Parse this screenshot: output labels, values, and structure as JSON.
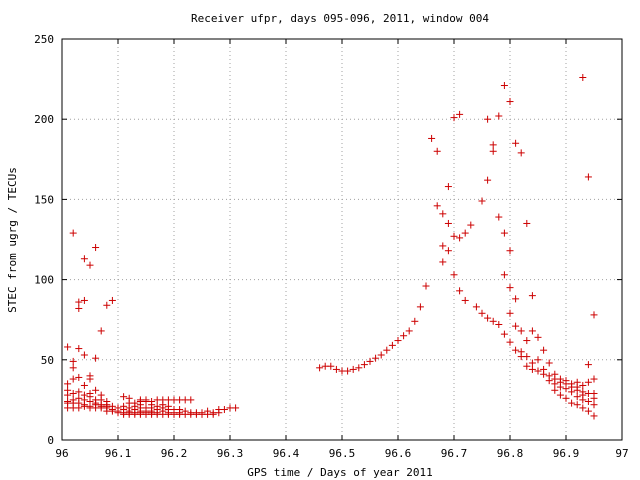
{
  "chart_data": {
    "type": "scatter",
    "title": "Receiver ufpr, days 095-096, 2011, window 004",
    "xlabel": "GPS time / Days of year 2011",
    "ylabel": "STEC from ugrg / TECUs",
    "xlim": [
      96,
      97
    ],
    "ylim": [
      0,
      250
    ],
    "x_ticks": [
      "96",
      "96.1",
      "96.2",
      "96.3",
      "96.4",
      "96.5",
      "96.6",
      "96.7",
      "96.8",
      "96.9",
      "97"
    ],
    "y_ticks": [
      "0",
      "50",
      "100",
      "150",
      "200",
      "250"
    ],
    "grid": true,
    "marker": "+",
    "color": "#cc0000",
    "series": [
      {
        "points": [
          [
            96.01,
            58
          ],
          [
            96.01,
            35
          ],
          [
            96.01,
            31
          ],
          [
            96.01,
            28
          ],
          [
            96.01,
            24
          ],
          [
            96.01,
            23
          ],
          [
            96.01,
            20
          ],
          [
            96.02,
            129
          ],
          [
            96.02,
            49
          ],
          [
            96.02,
            45
          ],
          [
            96.02,
            38
          ],
          [
            96.02,
            29
          ],
          [
            96.02,
            25
          ],
          [
            96.02,
            23
          ],
          [
            96.02,
            20
          ],
          [
            96.03,
            86
          ],
          [
            96.03,
            82
          ],
          [
            96.03,
            57
          ],
          [
            96.03,
            39
          ],
          [
            96.03,
            30
          ],
          [
            96.03,
            26
          ],
          [
            96.03,
            23
          ],
          [
            96.03,
            20
          ],
          [
            96.04,
            113
          ],
          [
            96.04,
            87
          ],
          [
            96.04,
            53
          ],
          [
            96.04,
            34
          ],
          [
            96.04,
            28
          ],
          [
            96.04,
            25
          ],
          [
            96.04,
            22
          ],
          [
            96.04,
            21
          ],
          [
            96.05,
            109
          ],
          [
            96.05,
            40
          ],
          [
            96.05,
            38
          ],
          [
            96.05,
            29
          ],
          [
            96.05,
            27
          ],
          [
            96.05,
            24
          ],
          [
            96.05,
            21
          ],
          [
            96.05,
            20
          ],
          [
            96.06,
            120
          ],
          [
            96.06,
            51
          ],
          [
            96.06,
            31
          ],
          [
            96.06,
            25
          ],
          [
            96.06,
            23
          ],
          [
            96.06,
            22
          ],
          [
            96.06,
            20
          ],
          [
            96.07,
            68
          ],
          [
            96.07,
            28
          ],
          [
            96.07,
            25
          ],
          [
            96.07,
            22
          ],
          [
            96.07,
            21
          ],
          [
            96.07,
            20
          ],
          [
            96.08,
            84
          ],
          [
            96.08,
            24
          ],
          [
            96.08,
            22
          ],
          [
            96.08,
            21
          ],
          [
            96.08,
            20
          ],
          [
            96.08,
            18
          ],
          [
            96.09,
            87
          ],
          [
            96.09,
            21
          ],
          [
            96.09,
            19
          ],
          [
            96.09,
            18
          ],
          [
            96.1,
            20
          ],
          [
            96.1,
            18
          ],
          [
            96.1,
            17
          ],
          [
            96.11,
            27
          ],
          [
            96.11,
            21
          ],
          [
            96.11,
            19
          ],
          [
            96.11,
            17
          ],
          [
            96.11,
            16
          ],
          [
            96.12,
            26
          ],
          [
            96.12,
            23
          ],
          [
            96.12,
            20
          ],
          [
            96.12,
            18
          ],
          [
            96.12,
            17
          ],
          [
            96.12,
            16
          ],
          [
            96.13,
            23
          ],
          [
            96.13,
            21
          ],
          [
            96.13,
            19
          ],
          [
            96.13,
            17
          ],
          [
            96.13,
            16
          ],
          [
            96.14,
            25
          ],
          [
            96.14,
            24
          ],
          [
            96.14,
            22
          ],
          [
            96.14,
            20
          ],
          [
            96.14,
            18
          ],
          [
            96.14,
            17
          ],
          [
            96.14,
            16
          ],
          [
            96.15,
            25
          ],
          [
            96.15,
            24
          ],
          [
            96.15,
            20
          ],
          [
            96.15,
            18
          ],
          [
            96.15,
            17
          ],
          [
            96.15,
            16
          ],
          [
            96.16,
            24
          ],
          [
            96.16,
            22
          ],
          [
            96.16,
            20
          ],
          [
            96.16,
            18
          ],
          [
            96.16,
            17
          ],
          [
            96.16,
            16
          ],
          [
            96.17,
            25
          ],
          [
            96.17,
            21
          ],
          [
            96.17,
            19
          ],
          [
            96.17,
            17
          ],
          [
            96.17,
            16
          ],
          [
            96.18,
            25
          ],
          [
            96.18,
            22
          ],
          [
            96.18,
            20
          ],
          [
            96.18,
            18
          ],
          [
            96.18,
            16
          ],
          [
            96.19,
            25
          ],
          [
            96.19,
            21
          ],
          [
            96.19,
            19
          ],
          [
            96.19,
            17
          ],
          [
            96.19,
            16
          ],
          [
            96.2,
            25
          ],
          [
            96.2,
            19
          ],
          [
            96.2,
            17
          ],
          [
            96.2,
            16
          ],
          [
            96.21,
            25
          ],
          [
            96.21,
            19
          ],
          [
            96.21,
            17
          ],
          [
            96.21,
            16
          ],
          [
            96.22,
            25
          ],
          [
            96.22,
            18
          ],
          [
            96.22,
            16
          ],
          [
            96.23,
            25
          ],
          [
            96.23,
            17
          ],
          [
            96.23,
            16
          ],
          [
            96.24,
            17
          ],
          [
            96.24,
            16
          ],
          [
            96.25,
            17
          ],
          [
            96.25,
            16
          ],
          [
            96.26,
            18
          ],
          [
            96.26,
            16
          ],
          [
            96.27,
            17
          ],
          [
            96.27,
            16
          ],
          [
            96.28,
            19
          ],
          [
            96.28,
            17
          ],
          [
            96.29,
            19
          ],
          [
            96.3,
            20
          ],
          [
            96.31,
            20
          ],
          [
            96.46,
            45
          ],
          [
            96.47,
            46
          ],
          [
            96.48,
            46
          ],
          [
            96.49,
            44
          ],
          [
            96.5,
            43
          ],
          [
            96.51,
            43
          ],
          [
            96.52,
            44
          ],
          [
            96.53,
            45
          ],
          [
            96.54,
            47
          ],
          [
            96.55,
            49
          ],
          [
            96.56,
            51
          ],
          [
            96.57,
            53
          ],
          [
            96.58,
            56
          ],
          [
            96.59,
            59
          ],
          [
            96.6,
            62
          ],
          [
            96.61,
            65
          ],
          [
            96.62,
            68
          ],
          [
            96.63,
            74
          ],
          [
            96.64,
            83
          ],
          [
            96.65,
            96
          ],
          [
            96.66,
            188
          ],
          [
            96.67,
            180
          ],
          [
            96.67,
            146
          ],
          [
            96.68,
            141
          ],
          [
            96.68,
            121
          ],
          [
            96.68,
            111
          ],
          [
            96.69,
            158
          ],
          [
            96.69,
            135
          ],
          [
            96.69,
            118
          ],
          [
            96.7,
            201
          ],
          [
            96.7,
            127
          ],
          [
            96.7,
            103
          ],
          [
            96.71,
            203
          ],
          [
            96.71,
            126
          ],
          [
            96.71,
            93
          ],
          [
            96.72,
            129
          ],
          [
            96.72,
            87
          ],
          [
            96.73,
            134
          ],
          [
            96.74,
            83
          ],
          [
            96.75,
            149
          ],
          [
            96.75,
            79
          ],
          [
            96.76,
            200
          ],
          [
            96.76,
            162
          ],
          [
            96.76,
            76
          ],
          [
            96.77,
            184
          ],
          [
            96.77,
            180
          ],
          [
            96.77,
            74
          ],
          [
            96.78,
            202
          ],
          [
            96.78,
            139
          ],
          [
            96.78,
            72
          ],
          [
            96.79,
            221
          ],
          [
            96.79,
            129
          ],
          [
            96.79,
            103
          ],
          [
            96.79,
            66
          ],
          [
            96.8,
            211
          ],
          [
            96.8,
            118
          ],
          [
            96.8,
            95
          ],
          [
            96.8,
            79
          ],
          [
            96.8,
            61
          ],
          [
            96.81,
            185
          ],
          [
            96.81,
            88
          ],
          [
            96.81,
            71
          ],
          [
            96.81,
            56
          ],
          [
            96.82,
            179
          ],
          [
            96.82,
            68
          ],
          [
            96.82,
            55
          ],
          [
            96.82,
            52
          ],
          [
            96.83,
            135
          ],
          [
            96.83,
            62
          ],
          [
            96.83,
            52
          ],
          [
            96.83,
            46
          ],
          [
            96.84,
            90
          ],
          [
            96.84,
            68
          ],
          [
            96.84,
            48
          ],
          [
            96.84,
            44
          ],
          [
            96.85,
            64
          ],
          [
            96.85,
            50
          ],
          [
            96.85,
            43
          ],
          [
            96.86,
            56
          ],
          [
            96.86,
            44
          ],
          [
            96.86,
            41
          ],
          [
            96.87,
            48
          ],
          [
            96.87,
            40
          ],
          [
            96.87,
            37
          ],
          [
            96.88,
            41
          ],
          [
            96.88,
            38
          ],
          [
            96.88,
            35
          ],
          [
            96.88,
            31
          ],
          [
            96.89,
            38
          ],
          [
            96.89,
            36
          ],
          [
            96.89,
            33
          ],
          [
            96.89,
            28
          ],
          [
            96.9,
            37
          ],
          [
            96.9,
            35
          ],
          [
            96.9,
            32
          ],
          [
            96.9,
            26
          ],
          [
            96.91,
            35
          ],
          [
            96.91,
            33
          ],
          [
            96.91,
            30
          ],
          [
            96.91,
            23
          ],
          [
            96.92,
            36
          ],
          [
            96.92,
            33
          ],
          [
            96.92,
            31
          ],
          [
            96.92,
            27
          ],
          [
            96.92,
            22
          ],
          [
            96.93,
            226
          ],
          [
            96.93,
            34
          ],
          [
            96.93,
            30
          ],
          [
            96.93,
            28
          ],
          [
            96.93,
            25
          ],
          [
            96.93,
            20
          ],
          [
            96.94,
            164
          ],
          [
            96.94,
            47
          ],
          [
            96.94,
            36
          ],
          [
            96.94,
            29
          ],
          [
            96.94,
            24
          ],
          [
            96.94,
            18
          ],
          [
            96.95,
            78
          ],
          [
            96.95,
            38
          ],
          [
            96.95,
            29
          ],
          [
            96.95,
            26
          ],
          [
            96.95,
            22
          ],
          [
            96.95,
            15
          ]
        ]
      }
    ]
  }
}
